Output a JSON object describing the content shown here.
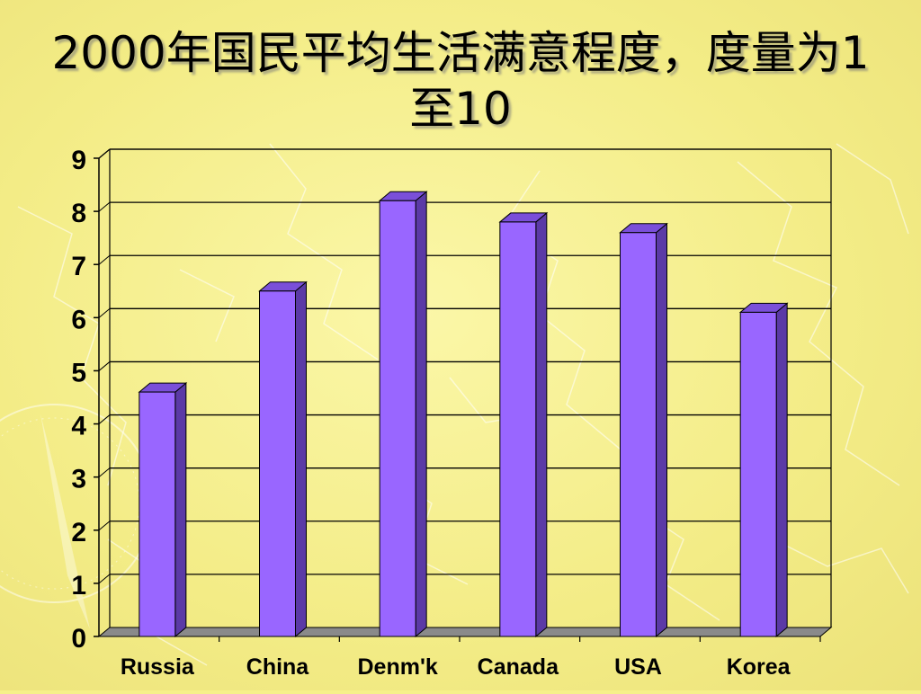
{
  "title": "2000年国民平均生活满意程度，度量为1至10",
  "colors": {
    "bar_front": "#9966ff",
    "bar_side": "#5b3aa6",
    "bar_top": "#7a4fd9",
    "floor": "#8a8a8a",
    "grid": "#000000",
    "background": "#f6f08a"
  },
  "chart_data": {
    "type": "bar",
    "title": "2000年国民平均生活满意程度，度量为1至10",
    "categories": [
      "Russia",
      "China",
      "Denm'k",
      "Canada",
      "USA",
      "Korea"
    ],
    "values": [
      4.6,
      6.5,
      8.2,
      7.8,
      7.6,
      6.1
    ],
    "ylim": [
      0,
      9
    ],
    "yticks": [
      "0",
      "1",
      "2",
      "3",
      "4",
      "5",
      "6",
      "7",
      "8",
      "9"
    ],
    "xlabel": "",
    "ylabel": "",
    "grid": true,
    "legend": "none",
    "style": "3d-column"
  }
}
